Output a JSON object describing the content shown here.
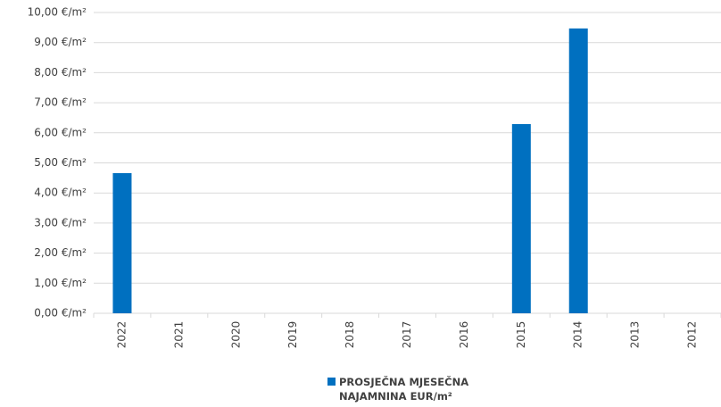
{
  "chart_data": {
    "type": "bar",
    "categories": [
      "2022",
      "2021",
      "2020",
      "2019",
      "2018",
      "2017",
      "2016",
      "2015",
      "2014",
      "2013",
      "2012"
    ],
    "series": [
      {
        "name": "PROSJEČNA MJESEČNA NAJAMNINA EUR/m²",
        "color": "#0070c0",
        "values": [
          4.66,
          null,
          null,
          null,
          null,
          null,
          null,
          6.29,
          9.47,
          null,
          null
        ]
      }
    ],
    "ylim": [
      0,
      10
    ],
    "yticks": [
      {
        "value": 0,
        "label": "0,00 €/m²"
      },
      {
        "value": 1,
        "label": "1,00 €/m²"
      },
      {
        "value": 2,
        "label": "2,00 €/m²"
      },
      {
        "value": 3,
        "label": "3,00 €/m²"
      },
      {
        "value": 4,
        "label": "4,00 €/m²"
      },
      {
        "value": 5,
        "label": "5,00 €/m²"
      },
      {
        "value": 6,
        "label": "6,00 €/m²"
      },
      {
        "value": 7,
        "label": "7,00 €/m²"
      },
      {
        "value": 8,
        "label": "8,00 €/m²"
      },
      {
        "value": 9,
        "label": "9,00 €/m²"
      },
      {
        "value": 10,
        "label": "10,00 €/m²"
      }
    ],
    "grid": true,
    "legend": "bottom"
  }
}
